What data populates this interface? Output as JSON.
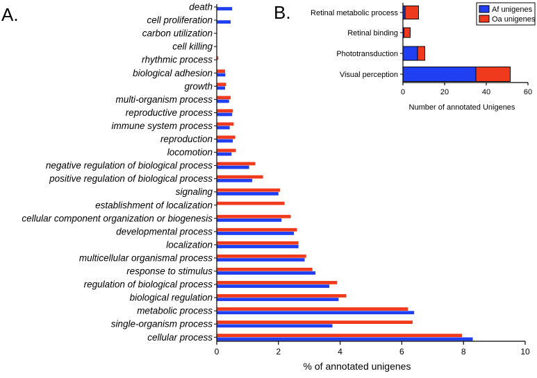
{
  "panel_labels": {
    "a": "A.",
    "b": "B."
  },
  "colors": {
    "af": "#1f3ff0",
    "oa": "#f03a1d",
    "axis": "#000000"
  },
  "chart_data": [
    {
      "type": "bar",
      "orientation": "horizontal",
      "title": "",
      "xlabel": "% of annotated unigenes",
      "ylabel": "",
      "xlim": [
        0,
        10
      ],
      "xticks": [
        "0",
        "2",
        "4",
        "6",
        "8",
        "10"
      ],
      "grid": false,
      "categories": [
        "death",
        "cell proliferation",
        "carbon utilization",
        "cell killing",
        "rhythmic process",
        "biological adhesion",
        "growth",
        "multi-organism process",
        "reproductive process",
        "immune system process",
        "reproduction",
        "locomotion",
        "negative regulation of biological process",
        "positive regulation of biological process",
        "signaling",
        "establishment of localization",
        "cellular component organization or biogenesis",
        "developmental process",
        "localization",
        "multicellular organismal process",
        "response to stimulus",
        "regulation of biological process",
        "biological regulation",
        "metabolic process",
        "single-organism process",
        "cellular process"
      ],
      "series": [
        {
          "name": "",
          "color": "#f03a1d",
          "values": [
            0,
            0,
            0,
            0,
            0.05,
            0.27,
            0.3,
            0.45,
            0.52,
            0.55,
            0.6,
            0.62,
            1.25,
            1.5,
            2.05,
            2.2,
            2.4,
            2.6,
            2.65,
            2.9,
            3.1,
            3.9,
            4.2,
            6.2,
            6.35,
            7.95
          ]
        },
        {
          "name": "",
          "color": "#1f3ff0",
          "values": [
            0.5,
            0.45,
            0,
            0,
            0,
            0.28,
            0.27,
            0.4,
            0.5,
            0.42,
            0.52,
            0.48,
            1.05,
            1.15,
            2.0,
            0,
            2.1,
            2.5,
            2.65,
            2.85,
            3.2,
            3.65,
            3.95,
            6.4,
            3.75,
            8.3
          ]
        }
      ]
    },
    {
      "type": "bar",
      "orientation": "horizontal",
      "stacked": true,
      "title": "",
      "xlabel": "Number of annotated Unigenes",
      "ylabel": "",
      "xlim": [
        0,
        60
      ],
      "xticks": [
        "0",
        "20",
        "40",
        "60"
      ],
      "grid": false,
      "legend_position": "top-right",
      "categories": [
        "Retinal metabolic process",
        "Retinal binding",
        "Phototransduction",
        "Visual perception"
      ],
      "series": [
        {
          "name": "Af unigenes",
          "color": "#1f3ff0",
          "values": [
            1,
            0.5,
            7,
            35
          ]
        },
        {
          "name": "Oa unigenes",
          "color": "#f03a1d",
          "values": [
            6.5,
            3,
            3.5,
            16.5
          ]
        }
      ]
    }
  ]
}
